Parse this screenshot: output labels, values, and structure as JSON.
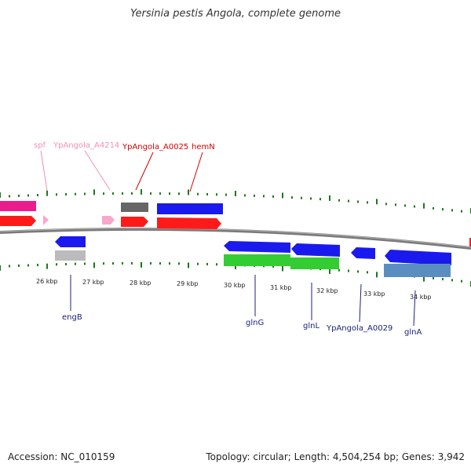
{
  "title": "Yersinia pestis Angola, complete genome",
  "footer": {
    "accession": "Accession: NC_010159",
    "summary": "Topology: circular; Length: 4,504,254 bp; Genes: 3,942"
  },
  "scale_labels": [
    "26 kbp",
    "27 kbp",
    "28 kbp",
    "29 kbp",
    "30 kbp",
    "31 kbp",
    "32 kbp",
    "33 kbp",
    "34 kbp"
  ],
  "top_labels": [
    {
      "text": "spf",
      "color": "#f48fb1"
    },
    {
      "text": "YpAngola_A4214",
      "color": "#f48fb1"
    },
    {
      "text": "YpAngola_A0025",
      "color": "#d50000"
    },
    {
      "text": "hemN",
      "color": "#d50000"
    }
  ],
  "bottom_labels": [
    {
      "text": "engB",
      "color": "#1a237e"
    },
    {
      "text": "glnG",
      "color": "#1a237e"
    },
    {
      "text": "glnL",
      "color": "#1a237e"
    },
    {
      "text": "YpAngola_A0029",
      "color": "#1a237e"
    },
    {
      "text": "glnA",
      "color": "#1a237e"
    }
  ],
  "colors": {
    "backbone": "#888888",
    "tick": "#1b7a1b",
    "pink": "#e91e8c",
    "light_pink": "#f8a8cc",
    "red": "#ff1a1a",
    "blue": "#1a1aee",
    "gray": "#666666",
    "light_gray": "#bbbbbb",
    "green": "#33cc33",
    "steel_blue": "#5b8ec0"
  }
}
